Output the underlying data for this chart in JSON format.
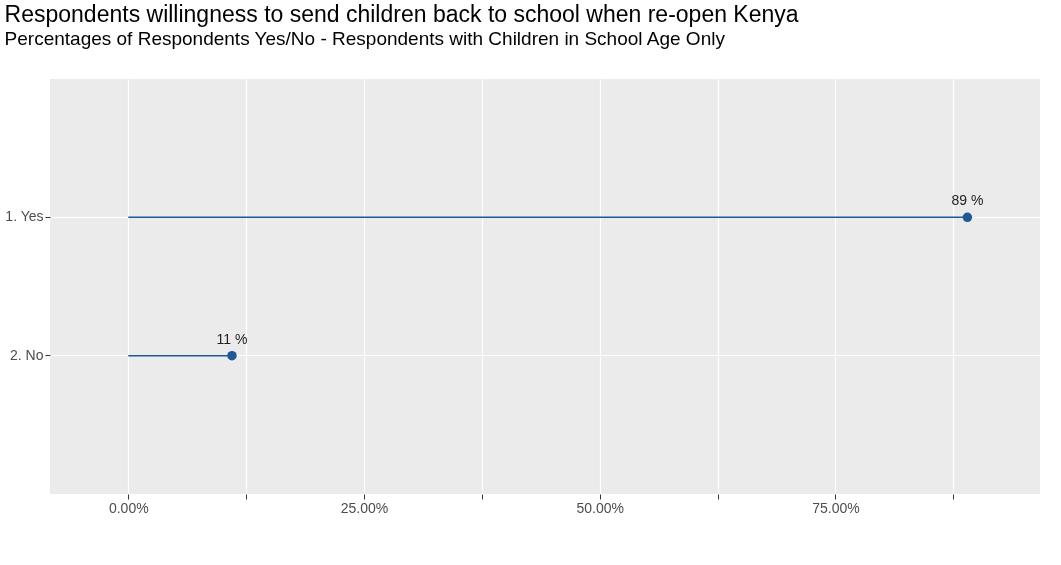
{
  "chart_data": {
    "type": "lollipop",
    "orientation": "horizontal",
    "title": "Respondents willingness to send children back to school when re-open Kenya",
    "subtitle": "Percentages of Respondents Yes/No - Respondents with Children in School Age Only",
    "categories": [
      "1. Yes",
      "2. No"
    ],
    "series": [
      {
        "color": "#1f5a96",
        "values": [
          89,
          11
        ],
        "value_labels": [
          "89 %",
          "11 %"
        ]
      }
    ],
    "xlim": [
      -8.3,
      96.7
    ],
    "xticks": [
      {
        "value": 0,
        "label": "0.00%"
      },
      {
        "value": 12.5,
        "label": null
      },
      {
        "value": 25,
        "label": "25.00%"
      },
      {
        "value": 37.5,
        "label": null
      },
      {
        "value": 50,
        "label": "50.00%"
      },
      {
        "value": 62.5,
        "label": null
      },
      {
        "value": 75,
        "label": "75.00%"
      },
      {
        "value": 87.5,
        "label": null
      }
    ],
    "grid": true,
    "marker": "circle"
  }
}
